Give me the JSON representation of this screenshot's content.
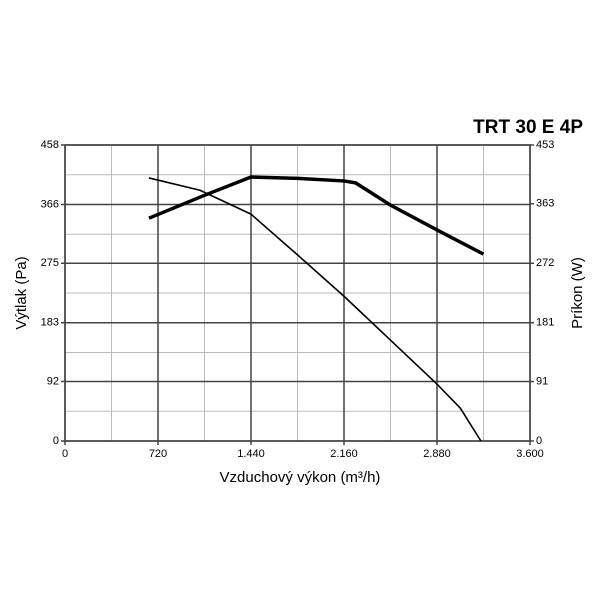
{
  "chart_data": {
    "type": "line",
    "title": "TRT 30 E 4P",
    "x_label": "Vzduchový výkon (m³/h)",
    "y_label": "Výtlak (Pa)",
    "y2_label": "Príkon (W)",
    "xlim": [
      0,
      3600
    ],
    "xticks": [
      0,
      720,
      {
        "value": 1440,
        "label": "1.440"
      },
      {
        "value": 2160,
        "label": "2.160"
      },
      {
        "value": 2880,
        "label": "2.880"
      },
      {
        "value": 3600,
        "label": "3.600"
      }
    ],
    "x_minor_ticks": [
      360,
      1080,
      1800,
      2520,
      3240
    ],
    "ylim": [
      0,
      458
    ],
    "yticks": [
      0,
      92,
      183,
      275,
      366,
      458
    ],
    "y_minor_ticks": [
      46,
      137,
      229,
      320,
      412
    ],
    "y2lim": [
      0,
      453
    ],
    "y2ticks": [
      0,
      91,
      181,
      272,
      363,
      453
    ],
    "grid": true,
    "series": [
      {
        "color": "#000000",
        "x": [
          650,
          1045,
          1440,
          1800,
          2160,
          2520,
          2880,
          3060,
          3220
        ],
        "values": [
          407,
          388,
          351,
          288,
          224,
          156,
          88,
          51,
          0
        ]
      },
      {
        "color": "#000000",
        "axis": "y2",
        "x": [
          650,
          1080,
          1440,
          1800,
          2160,
          2250,
          2520,
          2880,
          3240
        ],
        "values": [
          341,
          376,
          404,
          402,
          398,
          395,
          361,
          323,
          286
        ]
      }
    ]
  }
}
